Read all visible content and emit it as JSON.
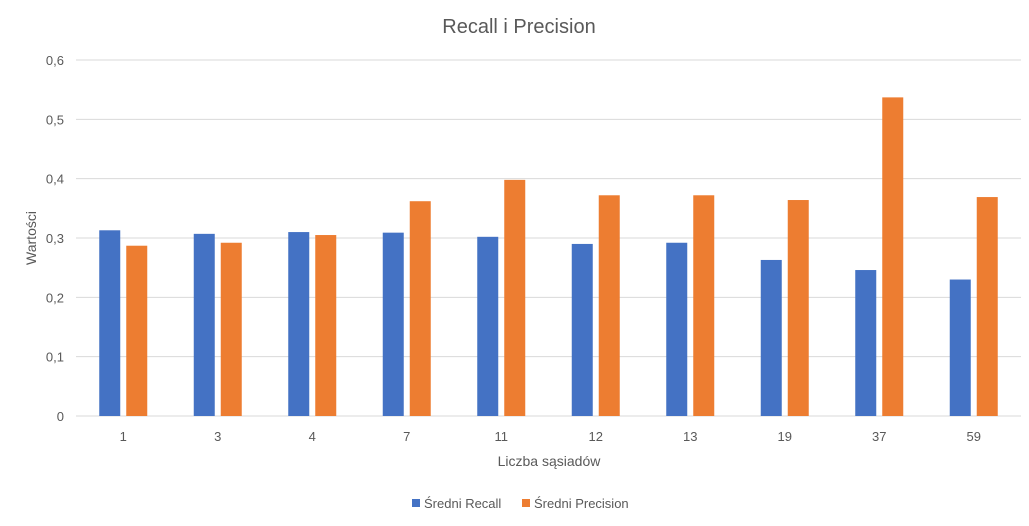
{
  "chart_data": {
    "type": "bar",
    "title": "Recall i Precision",
    "xlabel": "Liczba sąsiadów",
    "ylabel": "Wartości",
    "categories": [
      "1",
      "3",
      "4",
      "7",
      "11",
      "12",
      "13",
      "19",
      "37",
      "59"
    ],
    "series": [
      {
        "name": "Średni Recall",
        "color": "#4472C4",
        "values": [
          0.313,
          0.307,
          0.31,
          0.309,
          0.302,
          0.29,
          0.292,
          0.263,
          0.246,
          0.23
        ]
      },
      {
        "name": "Średni Precision",
        "color": "#ED7D31",
        "values": [
          0.287,
          0.292,
          0.305,
          0.362,
          0.398,
          0.372,
          0.372,
          0.364,
          0.537,
          0.369
        ]
      }
    ],
    "ylim": [
      0,
      0.6
    ],
    "yticks": [
      "0",
      "0,1",
      "0,2",
      "0,3",
      "0,4",
      "0,5",
      "0,6"
    ],
    "grid": true,
    "legend_position": "bottom"
  }
}
